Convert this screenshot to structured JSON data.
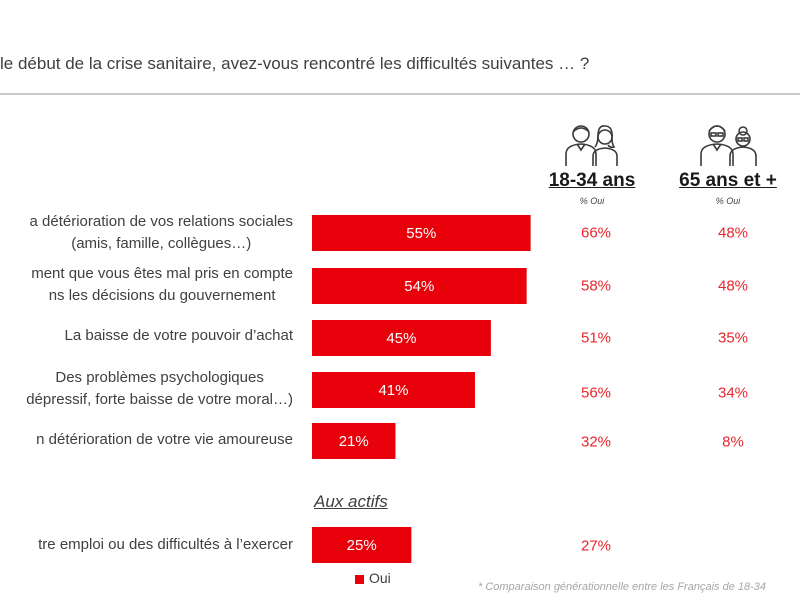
{
  "title": "le début de la crise sanitaire, avez-vous rencontré les difficultés suivantes … ?",
  "columns": {
    "young": {
      "label": "18-34 ans",
      "sub": "% Oui",
      "icon": "young-couple-icon"
    },
    "old": {
      "label": "65 ans et +",
      "sub": "% Oui",
      "icon": "elderly-couple-icon"
    }
  },
  "section_label": "Aux actifs",
  "legend": {
    "label": "Oui",
    "color": "#e8000b"
  },
  "footnote": "* Comparaison générationnelle entre les Français de 18-34",
  "colors": {
    "bar": "#e8000b",
    "comparison_text": "#e8262d"
  },
  "chart_data": {
    "type": "bar",
    "orientation": "horizontal",
    "categories": [
      [
        "a détérioration de vos relations sociales",
        "(amis, famille, collègues…)"
      ],
      [
        "ment que vous êtes mal pris en compte",
        "ns les décisions du gouvernement"
      ],
      [
        "La baisse de votre pouvoir d’achat"
      ],
      [
        "Des problèmes psychologiques",
        "dépressif, forte baisse de votre moral…)"
      ],
      [
        "n détérioration de votre vie amoureuse"
      ],
      [
        "tre emploi ou des difficultés à l’exercer"
      ]
    ],
    "values": [
      55,
      54,
      45,
      41,
      21,
      25
    ],
    "value_labels": [
      "55%",
      "54%",
      "45%",
      "41%",
      "21%",
      "25%"
    ],
    "series": [
      {
        "name": "Oui",
        "values": [
          55,
          54,
          45,
          41,
          21,
          25
        ]
      },
      {
        "name": "18-34 ans",
        "values": [
          66,
          58,
          51,
          56,
          32,
          27
        ],
        "labels": [
          "66%",
          "58%",
          "51%",
          "56%",
          "32%",
          "27%"
        ]
      },
      {
        "name": "65 ans et +",
        "values": [
          48,
          48,
          35,
          34,
          8,
          null
        ],
        "labels": [
          "48%",
          "48%",
          "35%",
          "34%",
          "8%",
          ""
        ]
      }
    ],
    "xlim": [
      0,
      100
    ]
  }
}
